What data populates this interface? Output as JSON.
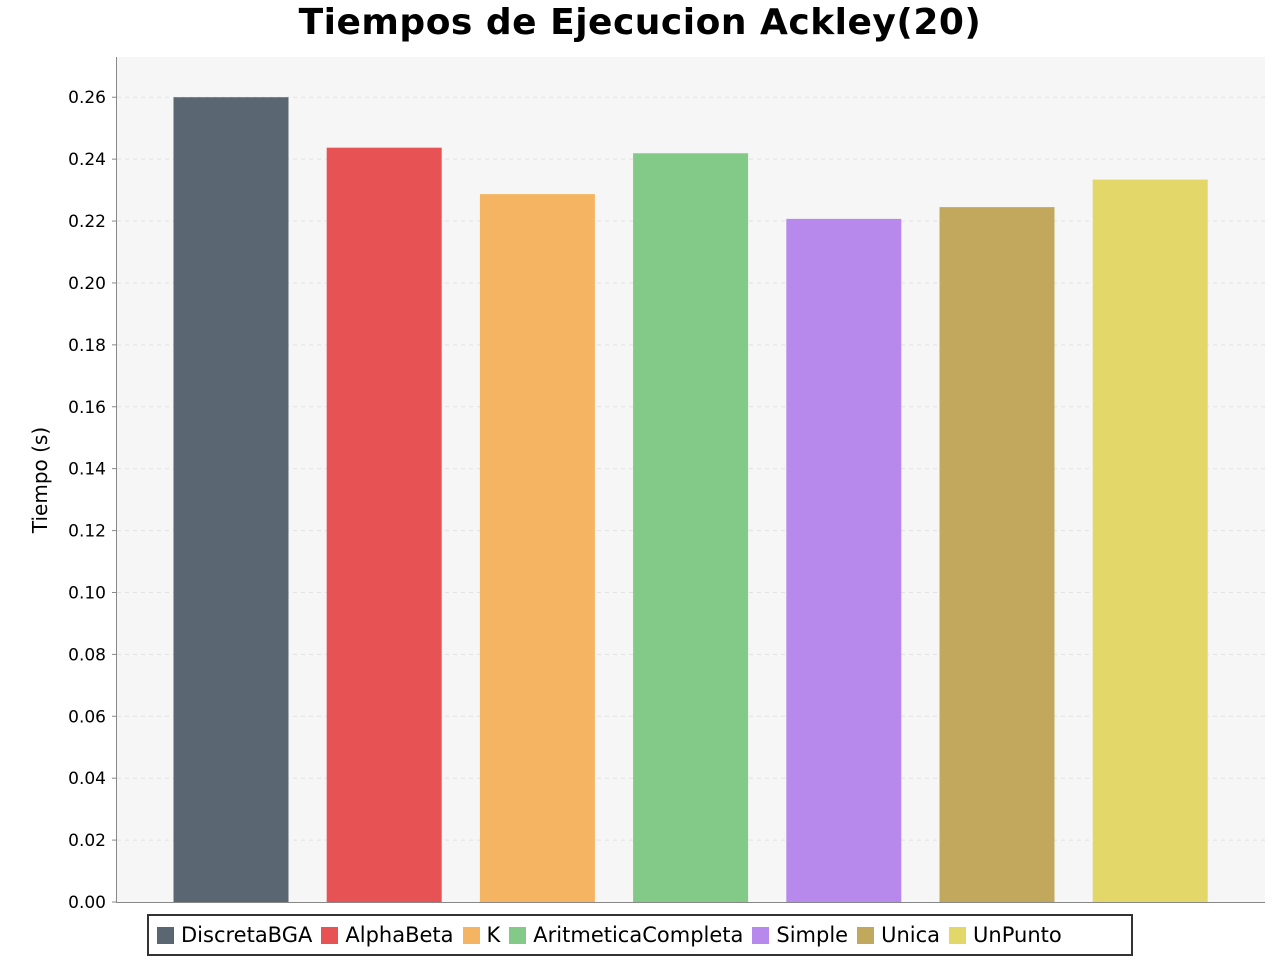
{
  "chart_data": {
    "type": "bar",
    "title": "Tiempos de Ejecucion Ackley(20)",
    "ylabel": "Tiempo (s)",
    "xlabel": "",
    "ylim": [
      0,
      0.273
    ],
    "yticks": [
      "0.00",
      "0.02",
      "0.04",
      "0.06",
      "0.08",
      "0.10",
      "0.12",
      "0.14",
      "0.16",
      "0.18",
      "0.20",
      "0.22",
      "0.24",
      "0.26"
    ],
    "grid": true,
    "legend_position": "bottom",
    "background": "#f6f6f6",
    "series": [
      {
        "name": "DiscretaBGA",
        "value": 0.26,
        "color": "#5a6672"
      },
      {
        "name": "AlphaBeta",
        "value": 0.2437,
        "color": "#e75254"
      },
      {
        "name": "K",
        "value": 0.2287,
        "color": "#f5b461"
      },
      {
        "name": "AritmeticaCompleta",
        "value": 0.2419,
        "color": "#83ca88"
      },
      {
        "name": "Simple",
        "value": 0.2207,
        "color": "#b889ed"
      },
      {
        "name": "Unica",
        "value": 0.2245,
        "color": "#c2a85c"
      },
      {
        "name": "UnPunto",
        "value": 0.2334,
        "color": "#e3d76a"
      }
    ]
  }
}
